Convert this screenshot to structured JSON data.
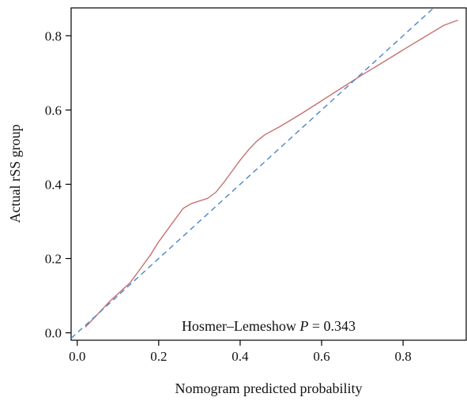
{
  "chart_data": {
    "type": "line",
    "title": "",
    "xlabel": "Nomogram predicted probability",
    "ylabel": "Actual rSS group",
    "xlim": [
      -0.015,
      0.955
    ],
    "ylim": [
      -0.02,
      0.875
    ],
    "x_ticks": [
      0.0,
      0.2,
      0.4,
      0.6,
      0.8
    ],
    "x_tick_labels": [
      "0.0",
      "0.2",
      "0.4",
      "0.6",
      "0.8"
    ],
    "y_ticks": [
      0.0,
      0.2,
      0.4,
      0.6,
      0.8
    ],
    "y_tick_labels": [
      "0.0",
      "0.2",
      "0.4",
      "0.6",
      "0.8"
    ],
    "grid": false,
    "legend": "none",
    "annotation": {
      "prefix": "Hosmer–Lemeshow ",
      "stat": "P",
      "suffix": " = 0.343"
    },
    "series": [
      {
        "style": "solid",
        "color": "#c87171",
        "x": [
          0.02,
          0.05,
          0.08,
          0.1,
          0.13,
          0.15,
          0.18,
          0.2,
          0.22,
          0.24,
          0.26,
          0.28,
          0.3,
          0.32,
          0.34,
          0.36,
          0.38,
          0.4,
          0.42,
          0.44,
          0.46,
          0.5,
          0.55,
          0.6,
          0.65,
          0.7,
          0.75,
          0.8,
          0.85,
          0.9,
          0.935
        ],
        "y": [
          0.015,
          0.05,
          0.085,
          0.105,
          0.135,
          0.165,
          0.21,
          0.245,
          0.275,
          0.305,
          0.335,
          0.348,
          0.355,
          0.362,
          0.378,
          0.405,
          0.435,
          0.465,
          0.492,
          0.515,
          0.533,
          0.557,
          0.59,
          0.625,
          0.66,
          0.695,
          0.728,
          0.762,
          0.795,
          0.828,
          0.842
        ]
      },
      {
        "style": "dashed",
        "color": "#4a86c8",
        "x": [
          -0.015,
          0.955
        ],
        "y": [
          -0.015,
          0.955
        ]
      }
    ]
  }
}
